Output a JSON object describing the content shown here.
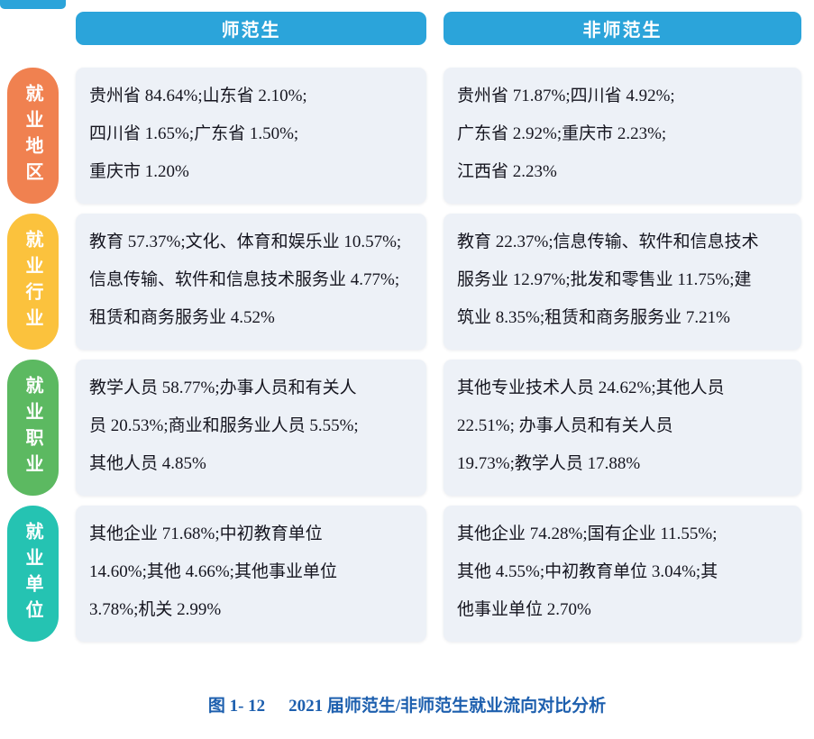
{
  "colors": {
    "header_bg": "#2BA4DA",
    "box_bg": "#EDF1F7",
    "caption": "#1D5FAE",
    "rows": [
      "#F08150",
      "#FBC23D",
      "#5CB961",
      "#25C3B2"
    ]
  },
  "headers": {
    "normal": "师范生",
    "non_normal": "非师范生"
  },
  "rows": [
    {
      "label": "就业地区",
      "color": "#F08150",
      "normal": [
        "贵州省 84.64%;山东省 2.10%;",
        "四川省 1.65%;广东省 1.50%;",
        "重庆市 1.20%"
      ],
      "non_normal": [
        "贵州省 71.87%;四川省 4.92%;",
        "广东省 2.92%;重庆市 2.23%;",
        "江西省 2.23%"
      ]
    },
    {
      "label": "就业行业",
      "color": "#FBC23D",
      "normal": [
        "教育 57.37%;文化、体育和娱乐业 10.57%;",
        "信息传输、软件和信息技术服务业 4.77%;",
        "租赁和商务服务业 4.52%"
      ],
      "non_normal": [
        "教育 22.37%;信息传输、软件和信息技术",
        "服务业 12.97%;批发和零售业 11.75%;建",
        "筑业 8.35%;租赁和商务服务业 7.21%"
      ]
    },
    {
      "label": "就业职业",
      "color": "#5CB961",
      "normal": [
        "教学人员 58.77%;办事人员和有关人",
        "员 20.53%;商业和服务业人员 5.55%;",
        "其他人员 4.85%"
      ],
      "non_normal": [
        "其他专业技术人员 24.62%;其他人员",
        "22.51%; 办事人员和有关人员",
        "19.73%;教学人员 17.88%"
      ]
    },
    {
      "label": "就业单位",
      "color": "#25C3B2",
      "normal": [
        "其他企业 71.68%;中初教育单位",
        "14.60%;其他 4.66%;其他事业单位",
        "3.78%;机关 2.99%"
      ],
      "non_normal": [
        "其他企业 74.28%;国有企业 11.55%;",
        "其他 4.55%;中初教育单位 3.04%;其",
        "他事业单位 2.70%"
      ]
    }
  ],
  "caption": {
    "figure_no": "图 1- 12",
    "title": "2021 届师范生/非师范生就业流向对比分析"
  }
}
